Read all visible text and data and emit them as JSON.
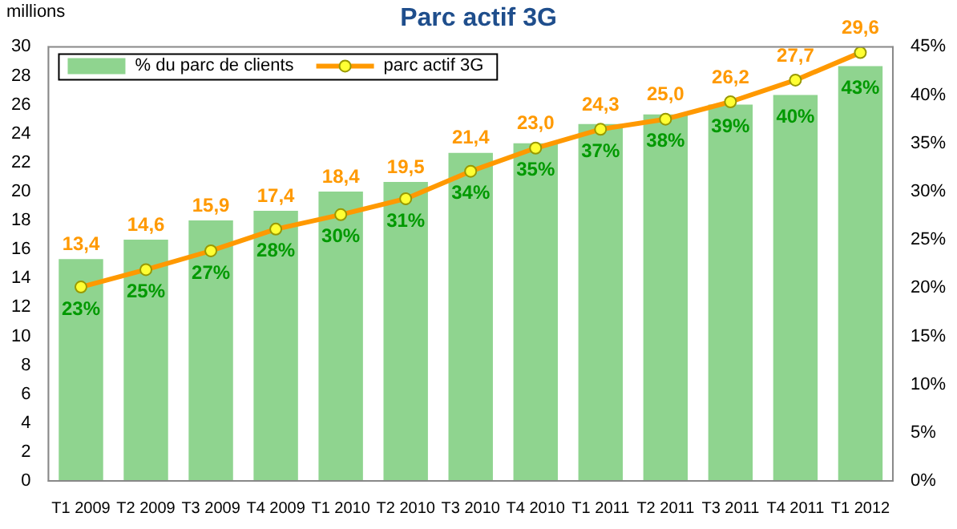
{
  "chart_data": {
    "type": "bar",
    "title": "Parc actif 3G",
    "ylabel": "millions",
    "categories": [
      "T1 2009",
      "T2 2009",
      "T3 2009",
      "T4 2009",
      "T1 2010",
      "T2 2010",
      "T3 2010",
      "T4 2010",
      "T1 2011",
      "T2 2011",
      "T3 2011",
      "T4 2011",
      "T1 2012"
    ],
    "series": [
      {
        "name": "% du parc de clients",
        "axis": "y2",
        "color": "#8fd48f",
        "values": [
          23,
          25,
          27,
          28,
          30,
          31,
          34,
          35,
          37,
          38,
          39,
          40,
          43
        ],
        "value_labels": [
          "23%",
          "25%",
          "27%",
          "28%",
          "30%",
          "31%",
          "34%",
          "35%",
          "37%",
          "38%",
          "39%",
          "40%",
          "43%"
        ]
      },
      {
        "name": "parc actif 3G",
        "type": "line",
        "color": "#ff9900",
        "values": [
          13.4,
          14.6,
          15.9,
          17.4,
          18.4,
          19.5,
          21.4,
          23.0,
          24.3,
          25.0,
          26.2,
          27.7,
          29.6
        ],
        "value_labels": [
          "13,4",
          "14,6",
          "15,9",
          "17,4",
          "18,4",
          "19,5",
          "21,4",
          "23,0",
          "24,3",
          "25,0",
          "26,2",
          "27,7",
          "29,6"
        ],
        "marker": "circle"
      }
    ],
    "ylim": [
      0,
      30
    ],
    "yticks": [
      0,
      2,
      4,
      6,
      8,
      10,
      12,
      14,
      16,
      18,
      20,
      22,
      24,
      26,
      28,
      30
    ],
    "y2lim": [
      0,
      45
    ],
    "y2ticks": [
      {
        "value": 0,
        "label": "0%"
      },
      {
        "value": 5,
        "label": "5%"
      },
      {
        "value": 10,
        "label": "10%"
      },
      {
        "value": 15,
        "label": "15%"
      },
      {
        "value": 20,
        "label": "20%"
      },
      {
        "value": 25,
        "label": "25%"
      },
      {
        "value": 30,
        "label": "30%"
      },
      {
        "value": 35,
        "label": "35%"
      },
      {
        "value": 40,
        "label": "40%"
      },
      {
        "value": 45,
        "label": "45%"
      }
    ],
    "grid": false,
    "legend": "top left",
    "line_style": "solid"
  }
}
